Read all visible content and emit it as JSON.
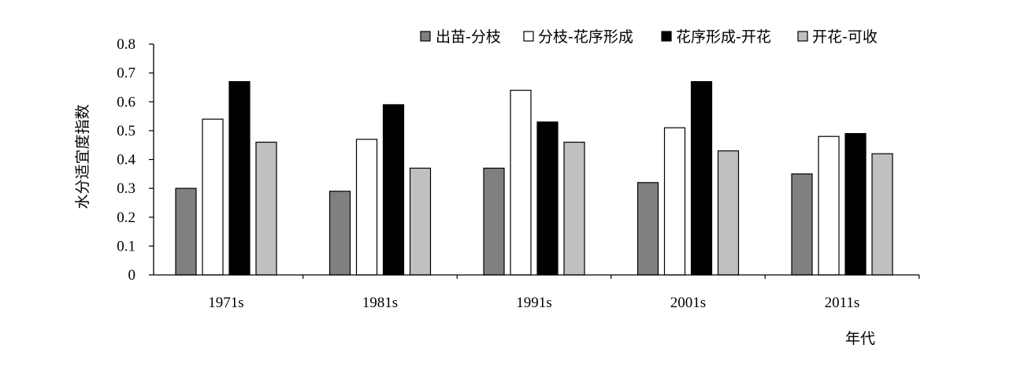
{
  "chart_data": {
    "type": "bar",
    "categories": [
      "1971s",
      "1981s",
      "1991s",
      "2001s",
      "2011s"
    ],
    "series": [
      {
        "name": "出苗-分枝",
        "color": "#808080",
        "values": [
          0.3,
          0.29,
          0.37,
          0.32,
          0.35
        ]
      },
      {
        "name": "分枝-花序形成",
        "color": "#ffffff",
        "values": [
          0.54,
          0.47,
          0.64,
          0.51,
          0.48
        ]
      },
      {
        "name": "花序形成-开花",
        "color": "#000000",
        "values": [
          0.67,
          0.59,
          0.53,
          0.67,
          0.49
        ]
      },
      {
        "name": "开花-可收",
        "color": "#c0c0c0",
        "values": [
          0.46,
          0.37,
          0.46,
          0.43,
          0.42
        ]
      }
    ],
    "xlabel": "年代",
    "ylabel": "水分适宜度指数",
    "ylim": [
      0,
      0.8
    ],
    "yticks": [
      "0",
      "0.1",
      "0.2",
      "0.3",
      "0.4",
      "0.5",
      "0.6",
      "0.7",
      "0.8"
    ],
    "grid": false,
    "legend": "top-right"
  }
}
